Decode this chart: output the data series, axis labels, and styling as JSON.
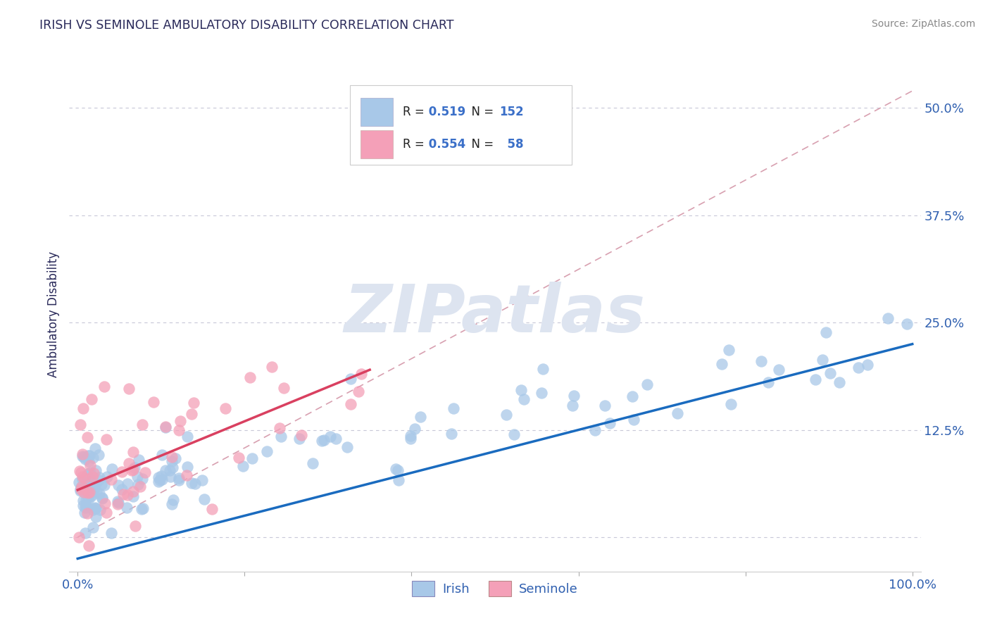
{
  "title": "IRISH VS SEMINOLE AMBULATORY DISABILITY CORRELATION CHART",
  "source": "Source: ZipAtlas.com",
  "ylabel": "Ambulatory Disability",
  "xlim": [
    -0.01,
    1.01
  ],
  "ylim": [
    -0.04,
    0.56
  ],
  "yticks": [
    0.0,
    0.125,
    0.25,
    0.375,
    0.5
  ],
  "ytick_labels": [
    "",
    "12.5%",
    "25.0%",
    "37.5%",
    "50.0%"
  ],
  "irish_R": 0.519,
  "irish_N": 152,
  "seminole_R": 0.554,
  "seminole_N": 58,
  "irish_color": "#a8c8e8",
  "seminole_color": "#f4a0b8",
  "irish_line_color": "#1a6bbf",
  "seminole_line_color": "#d94060",
  "title_color": "#2a2a5a",
  "axis_label_color": "#2a2a5a",
  "tick_color": "#3060b0",
  "background_color": "#ffffff",
  "grid_color": "#c8c8d8",
  "ref_line_color": "#d8a0b0",
  "watermark_color": "#dde4f0",
  "irish_line_x0": 0.0,
  "irish_line_y0": -0.025,
  "irish_line_x1": 1.0,
  "irish_line_y1": 0.225,
  "seminole_line_x0": 0.0,
  "seminole_line_y0": 0.055,
  "seminole_line_x1": 0.35,
  "seminole_line_y1": 0.195,
  "ref_line_x0": 0.0,
  "ref_line_y0": 0.0,
  "ref_line_x1": 1.0,
  "ref_line_y1": 0.52
}
